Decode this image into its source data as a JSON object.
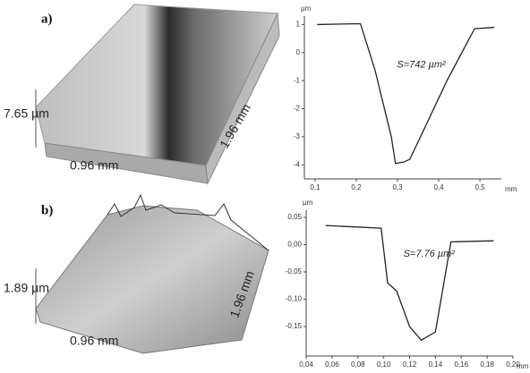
{
  "panels": [
    {
      "label": "a)",
      "height": "7.65 µm",
      "width": "0.96 mm",
      "depth": "1.96 mm"
    },
    {
      "label": "b)",
      "height": "1.89 µm",
      "width": "0.96 mm",
      "depth": "1.96 mm"
    }
  ],
  "chart_data": [
    {
      "type": "line",
      "x_label": "mm",
      "y_label": "µm",
      "annotation": "S=742 µm²",
      "color": "#222",
      "x": [
        0.105,
        0.21,
        0.245,
        0.285,
        0.295,
        0.315,
        0.33,
        0.42,
        0.487,
        0.535
      ],
      "values": [
        1.0,
        1.03,
        -0.6,
        -3.0,
        -3.95,
        -3.9,
        -3.8,
        -1.0,
        0.85,
        0.9
      ],
      "xlim": [
        0.074,
        0.552
      ],
      "ylim": [
        -4.5,
        1.3
      ],
      "xticks": [
        {
          "value": 0.1,
          "label": "0,1"
        },
        {
          "value": 0.2,
          "label": "0,2"
        },
        {
          "value": 0.3,
          "label": "0,3"
        },
        {
          "value": 0.4,
          "label": "0,4"
        },
        {
          "value": 0.5,
          "label": "0,5"
        }
      ],
      "yticks": [
        1,
        0,
        -1,
        -2,
        -3,
        -4
      ]
    },
    {
      "type": "line",
      "x_label": "mm",
      "y_label": "µm",
      "annotation": "S=7.76 µm²",
      "color": "#222",
      "x": [
        0.055,
        0.098,
        0.103,
        0.11,
        0.12,
        0.129,
        0.14,
        0.152,
        0.185
      ],
      "values": [
        0.035,
        0.03,
        -0.07,
        -0.085,
        -0.15,
        -0.175,
        -0.16,
        0.005,
        0.007
      ],
      "xlim": [
        0.04,
        0.2
      ],
      "ylim": [
        -0.204,
        0.063
      ],
      "xticks": [
        {
          "value": 0.04,
          "label": "0,04"
        },
        {
          "value": 0.06,
          "label": "0,06"
        },
        {
          "value": 0.08,
          "label": "0,08"
        },
        {
          "value": 0.1,
          "label": "0,10"
        },
        {
          "value": 0.12,
          "label": "0,12"
        },
        {
          "value": 0.14,
          "label": "0,14"
        },
        {
          "value": 0.16,
          "label": "0,16"
        },
        {
          "value": 0.18,
          "label": "0,18"
        },
        {
          "value": 0.2,
          "label": "0,20"
        }
      ],
      "yticks": [
        {
          "value": 0.05,
          "label": "0,05"
        },
        {
          "value": 0,
          "label": "0,00"
        },
        {
          "value": -0.05,
          "label": "-0,05"
        },
        {
          "value": -0.1,
          "label": "-0,10"
        },
        {
          "value": -0.15,
          "label": "-0,15"
        }
      ]
    }
  ]
}
